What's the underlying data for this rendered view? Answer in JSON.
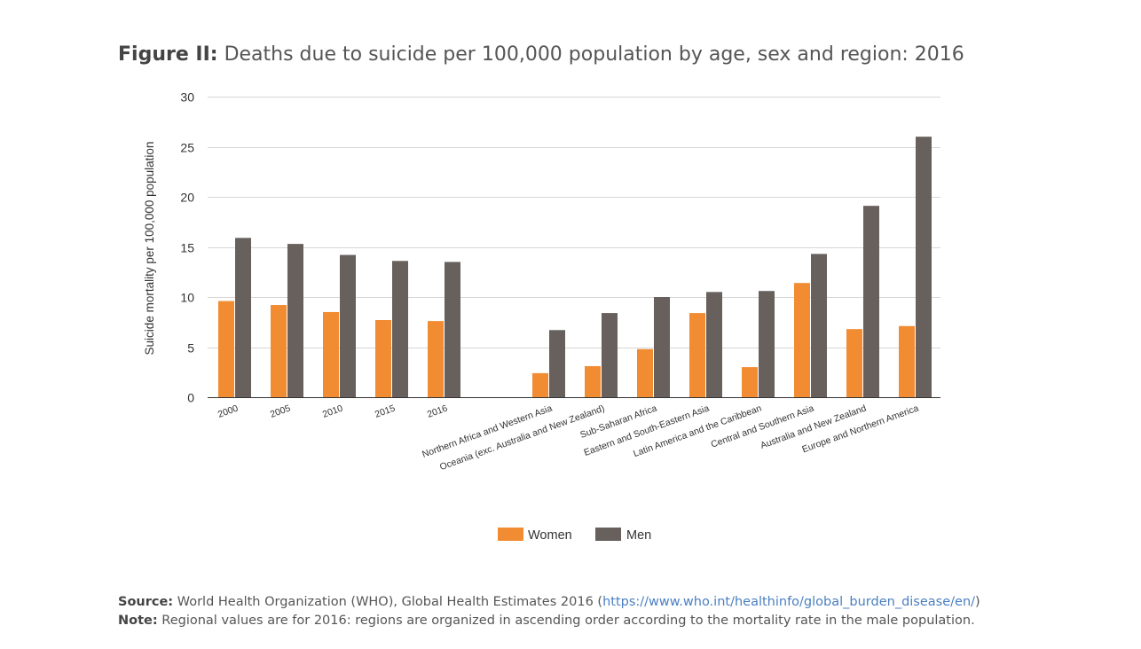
{
  "figure": {
    "label": "Figure II:",
    "title": "Deaths due to suicide per 100,000 population by age, sex and region: 2016"
  },
  "chart_data": {
    "type": "bar",
    "ylabel": "Suicide mortality per 100,000 population",
    "ylim": [
      0,
      30
    ],
    "yticks": [
      0,
      5,
      10,
      15,
      20,
      25,
      30
    ],
    "grid": true,
    "legend_position": "bottom-center",
    "categories": [
      "2000",
      "2005",
      "2010",
      "2015",
      "2016",
      "",
      "Northern Africa and Western Asia",
      "Oceania (exc. Australia and New Zealand)",
      "Sub-Saharan Africa",
      "Eastern and South-Eastern Asia",
      "Latin America and the Caribbean",
      "Central and Southern Asia",
      "Australia and New Zealand",
      "Europe and Northern America"
    ],
    "series": [
      {
        "name": "Women",
        "color": "#f28c33",
        "values": [
          9.6,
          9.2,
          8.5,
          7.7,
          7.6,
          null,
          2.4,
          3.1,
          4.8,
          8.4,
          3.0,
          11.4,
          6.8,
          7.1
        ]
      },
      {
        "name": "Men",
        "color": "#67605c",
        "values": [
          15.9,
          15.3,
          14.2,
          13.6,
          13.5,
          null,
          6.7,
          8.4,
          10.0,
          10.5,
          10.6,
          14.3,
          19.1,
          26.0
        ]
      }
    ]
  },
  "footer": {
    "source_label": "Source:",
    "source_text": "World Health Organization (WHO), Global Health Estimates 2016 (",
    "source_link": "https://www.who.int/healthinfo/global_burden_disease/en/",
    "source_close": ")",
    "note_label": "Note:",
    "note_text": "Regional values are for 2016: regions are organized in ascending order according to the mortality rate in the male population."
  }
}
